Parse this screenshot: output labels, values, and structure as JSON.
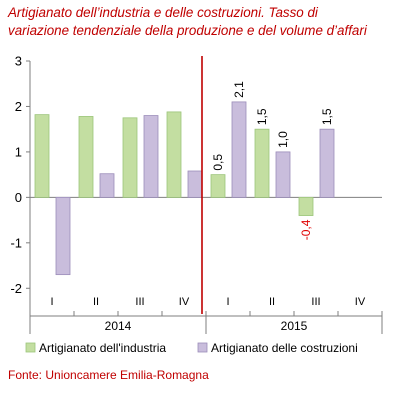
{
  "title_line1": "Artigianato dell’industria e delle costruzioni. Tasso di",
  "title_line2": "variazione tendenziale della produzione e del volume d’affari",
  "source": "Fonte: Unioncamere Emilia-Romagna",
  "colors": {
    "industria_fill": "#c3dea1",
    "industria_stroke": "#9cc57a",
    "costruzioni_fill": "#c9bddc",
    "costruzioni_stroke": "#9c8dba",
    "divider": "#c00000",
    "title": "#c00000",
    "negative_label": "#e00000"
  },
  "chart_data": {
    "type": "bar",
    "categories": [
      "I",
      "II",
      "III",
      "IV",
      "I",
      "II",
      "III",
      "IV"
    ],
    "groups": [
      {
        "label": "2014",
        "categories": [
          "I",
          "II",
          "III",
          "IV"
        ]
      },
      {
        "label": "2015",
        "categories": [
          "I",
          "II",
          "III",
          "IV"
        ]
      }
    ],
    "series": [
      {
        "name": "Artigianato dell'industria",
        "values": [
          1.82,
          1.78,
          1.75,
          1.88,
          0.5,
          1.5,
          -0.4,
          null
        ],
        "data_labels": [
          null,
          null,
          null,
          null,
          "0,5",
          "1,5",
          "-0,4",
          null
        ]
      },
      {
        "name": "Artigianato delle costruzioni",
        "values": [
          -1.7,
          0.52,
          1.8,
          0.58,
          2.1,
          1.0,
          1.5,
          null
        ],
        "data_labels": [
          null,
          null,
          null,
          null,
          "2,1",
          "1,0",
          "1,5",
          null
        ]
      }
    ],
    "ylim": [
      -2.5,
      3
    ],
    "yticks": [
      3,
      2,
      1,
      0,
      -1,
      -2
    ],
    "ytick_labels": [
      "3",
      "2",
      "1",
      "0",
      "-1",
      "-2"
    ],
    "divider_between_categories": [
      3,
      4
    ],
    "grid": false,
    "legend_position": "bottom"
  }
}
